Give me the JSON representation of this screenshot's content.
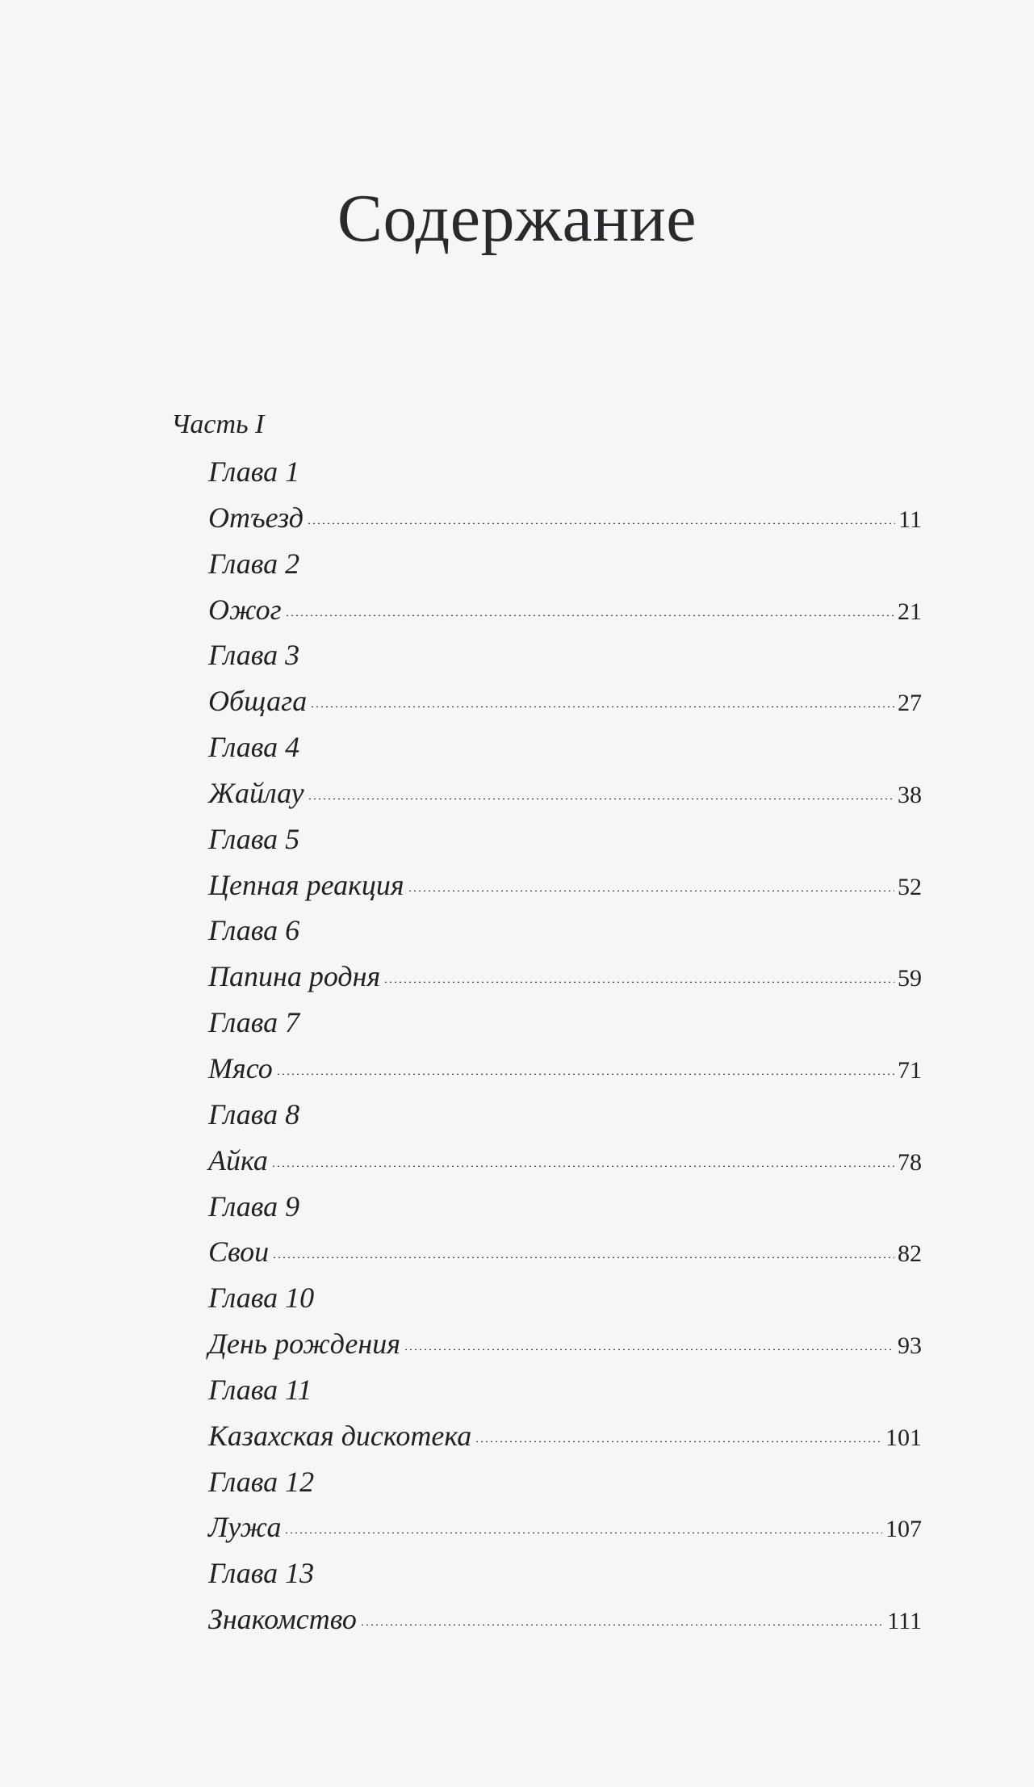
{
  "title": "Содержание",
  "part": "Часть I",
  "chapters": [
    {
      "label": "Глава 1",
      "name": "Отъезд",
      "page": "11"
    },
    {
      "label": "Глава 2",
      "name": "Ожог",
      "page": "21"
    },
    {
      "label": "Глава 3",
      "name": "Общага",
      "page": "27"
    },
    {
      "label": "Глава 4",
      "name": "Жайлау",
      "page": "38"
    },
    {
      "label": "Глава 5",
      "name": "Цепная реакция",
      "page": "52"
    },
    {
      "label": "Глава 6",
      "name": "Папина родня",
      "page": "59"
    },
    {
      "label": "Глава 7",
      "name": "Мясо",
      "page": "71"
    },
    {
      "label": "Глава 8",
      "name": "Айка",
      "page": "78"
    },
    {
      "label": "Глава 9",
      "name": "Свои",
      "page": "82"
    },
    {
      "label": "Глава 10",
      "name": "День рождения",
      "page": "93"
    },
    {
      "label": "Глава 11",
      "name": "Казахская дискотека",
      "page": "101"
    },
    {
      "label": "Глава 12",
      "name": "Лужа",
      "page": "107"
    },
    {
      "label": "Глава 13",
      "name": "Знакомство",
      "page": "111"
    }
  ]
}
